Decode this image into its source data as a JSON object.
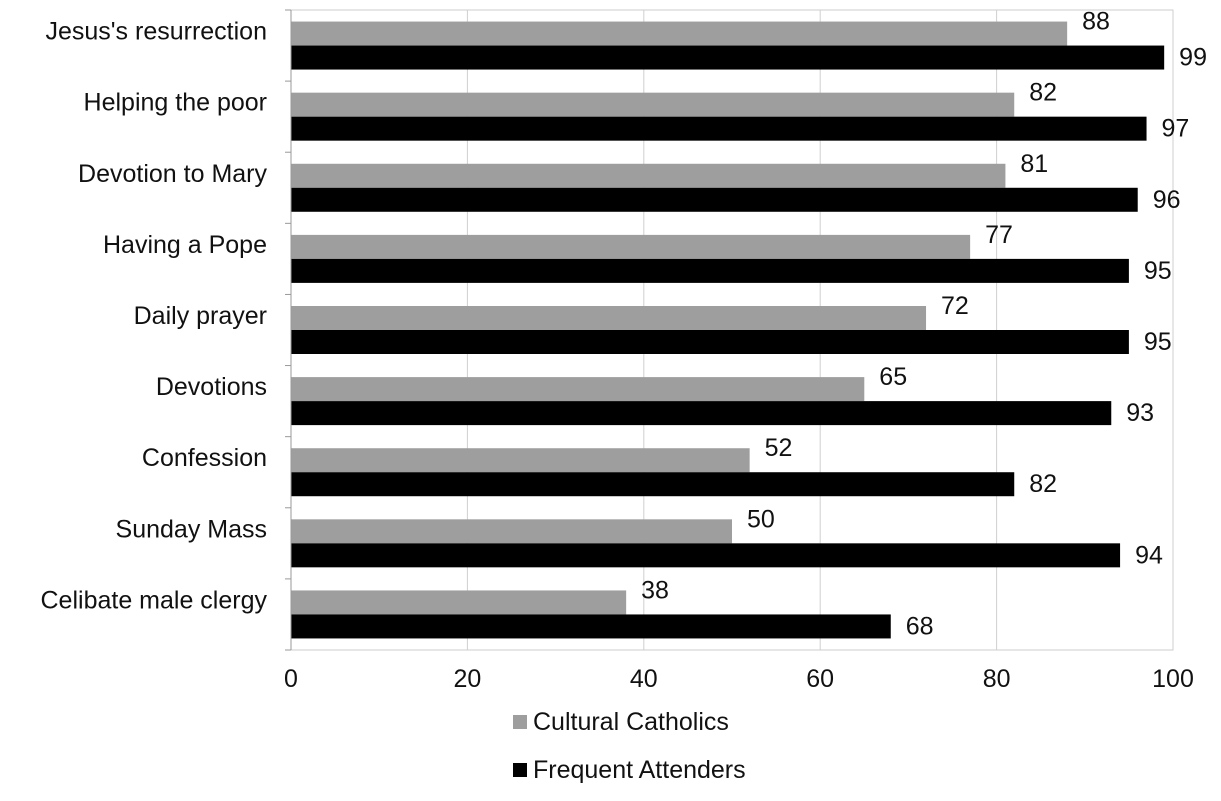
{
  "chart_data": {
    "type": "bar",
    "orientation": "horizontal",
    "categories": [
      "Jesus's resurrection",
      "Helping the poor",
      "Devotion to Mary",
      "Having a Pope",
      "Daily prayer",
      "Devotions",
      "Confession",
      "Sunday Mass",
      "Celibate male clergy"
    ],
    "series": [
      {
        "name": "Cultural Catholics",
        "color": "#9e9e9e",
        "values": [
          88,
          82,
          81,
          77,
          72,
          65,
          52,
          50,
          38
        ]
      },
      {
        "name": "Frequent Attenders",
        "color": "#000000",
        "values": [
          99,
          97,
          96,
          95,
          95,
          93,
          82,
          94,
          68
        ]
      }
    ],
    "xlim": [
      0,
      100
    ],
    "xticks": [
      0,
      20,
      40,
      60,
      80,
      100
    ],
    "grid": "vertical",
    "legend": "bottom",
    "data_labels": true
  }
}
